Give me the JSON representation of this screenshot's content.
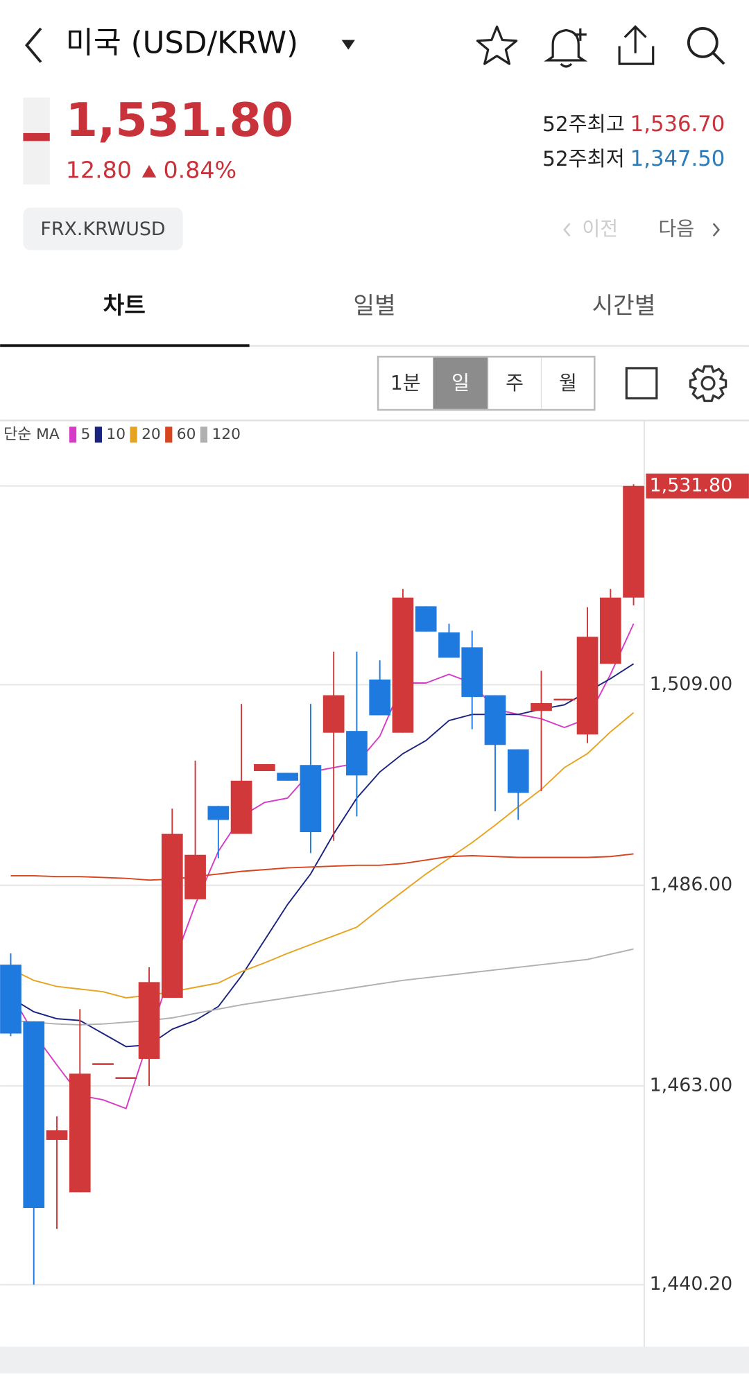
{
  "header": {
    "title": "미국 (USD/KRW)"
  },
  "quote": {
    "price": "1,531.80",
    "change": "12.80",
    "change_pct": "0.84%",
    "high_52w_label": "52주최고",
    "high_52w": "1,536.70",
    "low_52w_label": "52주최저",
    "low_52w": "1,347.50",
    "code": "FRX.KRWUSD",
    "prev": "이전",
    "next": "다음"
  },
  "tabs": [
    "차트",
    "일별",
    "시간별"
  ],
  "periods": [
    "1분",
    "일",
    "주",
    "월"
  ],
  "chart_data": {
    "type": "candlestick",
    "open": [
      1476.9,
      1470.4,
      1456.8,
      1450.8,
      1465.6,
      1464.0,
      1466.1,
      1473.1,
      1484.4,
      1495.1,
      1491.9,
      1499.1,
      1498.9,
      1499.8,
      1503.5,
      1503.7,
      1509.6,
      1503.5,
      1518.0,
      1515.0,
      1513.3,
      1507.8,
      1501.6,
      1506.0,
      1507.2,
      1503.3,
      1511.4,
      1519.0
    ],
    "high": [
      1478.2,
      1470.4,
      1459.5,
      1471.8,
      1465.6,
      1464.0,
      1476.6,
      1494.8,
      1500.3,
      1495.1,
      1506.8,
      1499.9,
      1498.9,
      1506.8,
      1512.8,
      1512.8,
      1511.8,
      1520.0,
      1518.0,
      1516.0,
      1515.2,
      1507.8,
      1501.6,
      1510.6,
      1507.4,
      1517.9,
      1520.0,
      1532.0
    ],
    "low": [
      1468.7,
      1440.2,
      1446.6,
      1450.8,
      1465.6,
      1464.0,
      1463.0,
      1473.1,
      1484.4,
      1489.1,
      1491.9,
      1499.1,
      1498.0,
      1489.7,
      1491.1,
      1493.9,
      1505.5,
      1503.5,
      1515.1,
      1512.1,
      1503.9,
      1494.5,
      1493.5,
      1496.8,
      1507.2,
      1502.3,
      1511.4,
      1518.1
    ],
    "close": [
      1469.0,
      1449.0,
      1457.9,
      1464.4,
      1465.6,
      1464.0,
      1474.9,
      1491.9,
      1489.5,
      1493.5,
      1498.0,
      1499.9,
      1498.0,
      1492.1,
      1507.8,
      1498.6,
      1505.5,
      1519.0,
      1515.1,
      1512.1,
      1507.6,
      1502.1,
      1496.6,
      1506.9,
      1507.4,
      1514.5,
      1519.0,
      1531.8
    ],
    "up_color": "#d0383a",
    "down_color": "#1f7ae0",
    "ma_label": "단순 MA",
    "ma_series": [
      {
        "name": "5",
        "color": "#d63cc6",
        "values": [
          1473.6,
          1469.0,
          1465.4,
          1461.9,
          1461.4,
          1460.4,
          1468.5,
          1476.6,
          1483.8,
          1489.9,
          1493.9,
          1495.5,
          1496.0,
          1499.0,
          1499.5,
          1500.0,
          1503.1,
          1509.2,
          1509.2,
          1510.2,
          1509.2,
          1506.2,
          1505.6,
          1505.1,
          1504.1,
          1505.1,
          1510.2,
          1516.0
        ]
      },
      {
        "name": "10",
        "color": "#1a237e",
        "values": [
          1473.1,
          1471.5,
          1470.7,
          1470.5,
          1469.0,
          1467.5,
          1467.7,
          1469.5,
          1470.5,
          1472.1,
          1475.6,
          1479.7,
          1483.8,
          1487.3,
          1491.9,
          1496.0,
          1499.0,
          1501.1,
          1502.6,
          1504.9,
          1505.6,
          1505.6,
          1505.6,
          1506.2,
          1506.7,
          1508.2,
          1509.7,
          1511.4
        ]
      },
      {
        "name": "20",
        "color": "#e6a320",
        "values": [
          1476.4,
          1475.1,
          1474.4,
          1474.1,
          1473.8,
          1473.1,
          1473.4,
          1473.8,
          1474.3,
          1474.8,
          1476.1,
          1477.1,
          1478.2,
          1479.2,
          1480.2,
          1481.2,
          1483.3,
          1485.3,
          1487.3,
          1489.1,
          1490.9,
          1492.9,
          1495.0,
          1497.0,
          1499.5,
          1501.1,
          1503.6,
          1505.8
        ]
      },
      {
        "name": "60",
        "color": "#d8451c",
        "values": [
          1487.1,
          1487.1,
          1487.0,
          1487.0,
          1486.9,
          1486.8,
          1486.6,
          1486.7,
          1487.0,
          1487.3,
          1487.6,
          1487.8,
          1488.0,
          1488.1,
          1488.2,
          1488.3,
          1488.3,
          1488.5,
          1488.9,
          1489.3,
          1489.4,
          1489.3,
          1489.2,
          1489.2,
          1489.2,
          1489.2,
          1489.3,
          1489.6
        ]
      },
      {
        "name": "120",
        "color": "#b0b0b0",
        "values": [
          1470.5,
          1470.3,
          1470.1,
          1470.0,
          1470.1,
          1470.3,
          1470.5,
          1470.8,
          1471.3,
          1471.8,
          1472.3,
          1472.7,
          1473.1,
          1473.5,
          1473.9,
          1474.3,
          1474.7,
          1475.1,
          1475.4,
          1475.7,
          1476.0,
          1476.3,
          1476.6,
          1476.9,
          1477.2,
          1477.5,
          1478.1,
          1478.7
        ]
      }
    ],
    "ylim": [
      1433.4,
      1538.9
    ],
    "yticks": [
      {
        "value": 1440.2,
        "label": "1,440.20"
      },
      {
        "value": 1463,
        "label": "1,463.00"
      },
      {
        "value": 1486,
        "label": "1,486.00"
      },
      {
        "value": 1509,
        "label": "1,509.00"
      }
    ],
    "price_tag": {
      "value": 1531.8,
      "label": "1,531.80"
    },
    "grid": true
  }
}
